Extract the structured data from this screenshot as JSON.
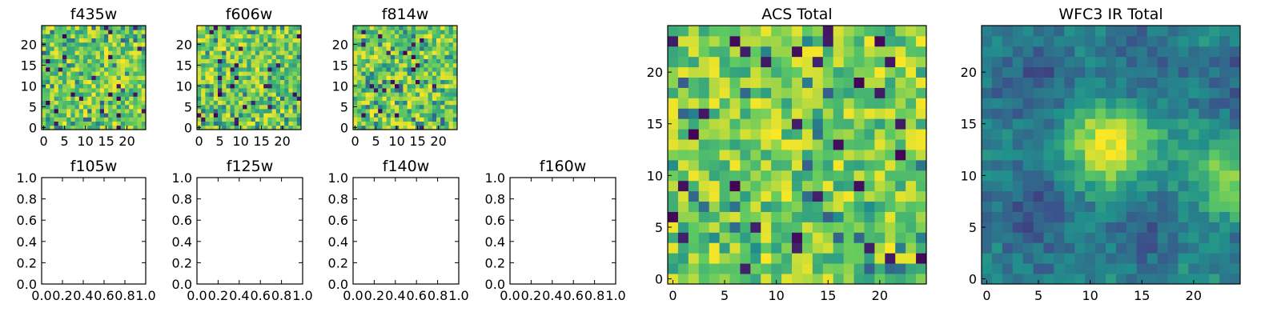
{
  "chart_data": [
    {
      "type": "heatmap",
      "title": "f435w",
      "grid_size": 25,
      "x_ticks": [
        "0",
        "5",
        "10",
        "15",
        "20"
      ],
      "y_ticks": [
        "0",
        "5",
        "10",
        "15",
        "20"
      ],
      "pattern": "noise",
      "seed": 11
    },
    {
      "type": "heatmap",
      "title": "f606w",
      "grid_size": 25,
      "x_ticks": [
        "0",
        "5",
        "10",
        "15",
        "20"
      ],
      "y_ticks": [
        "0",
        "5",
        "10",
        "15",
        "20"
      ],
      "pattern": "noise",
      "seed": 23
    },
    {
      "type": "heatmap",
      "title": "f814w",
      "grid_size": 25,
      "x_ticks": [
        "0",
        "5",
        "10",
        "15",
        "20"
      ],
      "y_ticks": [
        "0",
        "5",
        "10",
        "15",
        "20"
      ],
      "pattern": "noise",
      "seed": 37
    },
    {
      "type": "empty",
      "title": "f105w",
      "xlim": [
        0,
        1
      ],
      "ylim": [
        0,
        1
      ],
      "x_ticks": [
        "0.0",
        "0.2",
        "0.4",
        "0.6",
        "0.8",
        "1.0"
      ],
      "y_ticks": [
        "0.0",
        "0.2",
        "0.4",
        "0.6",
        "0.8",
        "1.0"
      ]
    },
    {
      "type": "empty",
      "title": "f125w",
      "xlim": [
        0,
        1
      ],
      "ylim": [
        0,
        1
      ],
      "x_ticks": [
        "0.0",
        "0.2",
        "0.4",
        "0.6",
        "0.8",
        "1.0"
      ],
      "y_ticks": [
        "0.0",
        "0.2",
        "0.4",
        "0.6",
        "0.8",
        "1.0"
      ]
    },
    {
      "type": "empty",
      "title": "f140w",
      "xlim": [
        0,
        1
      ],
      "ylim": [
        0,
        1
      ],
      "x_ticks": [
        "0.0",
        "0.2",
        "0.4",
        "0.6",
        "0.8",
        "1.0"
      ],
      "y_ticks": [
        "0.0",
        "0.2",
        "0.4",
        "0.6",
        "0.8",
        "1.0"
      ]
    },
    {
      "type": "empty",
      "title": "f160w",
      "xlim": [
        0,
        1
      ],
      "ylim": [
        0,
        1
      ],
      "x_ticks": [
        "0.0",
        "0.2",
        "0.4",
        "0.6",
        "0.8",
        "1.0"
      ],
      "y_ticks": [
        "0.0",
        "0.2",
        "0.4",
        "0.6",
        "0.8",
        "1.0"
      ]
    },
    {
      "type": "heatmap",
      "title": "ACS Total",
      "grid_size": 25,
      "x_ticks": [
        "0",
        "5",
        "10",
        "15",
        "20"
      ],
      "y_ticks": [
        "0",
        "5",
        "10",
        "15",
        "20"
      ],
      "pattern": "noise",
      "seed": 51
    },
    {
      "type": "heatmap",
      "title": "WFC3 IR Total",
      "grid_size": 25,
      "x_ticks": [
        "0",
        "5",
        "10",
        "15",
        "20"
      ],
      "y_ticks": [
        "0",
        "5",
        "10",
        "15",
        "20"
      ],
      "pattern": "source",
      "source_center": [
        12.5,
        13
      ],
      "seed": 71
    }
  ],
  "colors": {
    "viridis": [
      "#440154",
      "#3b528b",
      "#21918c",
      "#5ec962",
      "#fde725"
    ],
    "axis": "#000000",
    "background": "#ffffff"
  }
}
